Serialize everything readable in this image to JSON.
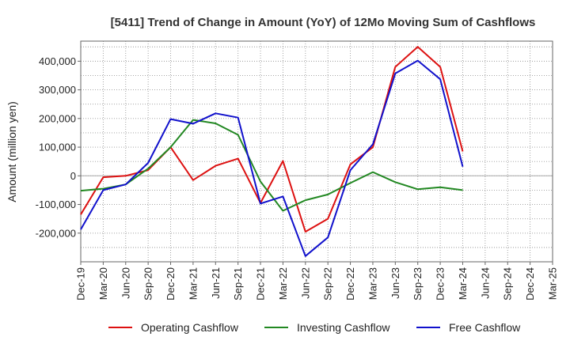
{
  "chart_data": {
    "type": "line",
    "title": "[5411]  Trend of Change in Amount (YoY) of 12Mo Moving Sum of Cashflows",
    "xlabel": "",
    "ylabel": "Amount (million yen)",
    "ylim": [
      -300000,
      470000
    ],
    "yticks": [
      -200000,
      -100000,
      0,
      100000,
      200000,
      300000,
      400000
    ],
    "ytick_labels": [
      "-200,000",
      "-100,000",
      "0",
      "100,000",
      "200,000",
      "300,000",
      "400,000"
    ],
    "categories": [
      "Dec-19",
      "Mar-20",
      "Jun-20",
      "Sep-20",
      "Dec-20",
      "Mar-21",
      "Jun-21",
      "Sep-21",
      "Dec-21",
      "Mar-22",
      "Jun-22",
      "Sep-22",
      "Dec-22",
      "Mar-23",
      "Jun-23",
      "Sep-23",
      "Dec-23",
      "Mar-24",
      "Jun-24",
      "Sep-24",
      "Dec-24",
      "Mar-25"
    ],
    "grid": true,
    "legend_position": "bottom",
    "series": [
      {
        "name": "Operating Cashflow",
        "color": "#dd1111",
        "values": [
          -135000,
          -5000,
          0,
          20000,
          100000,
          -15000,
          35000,
          60000,
          -95000,
          52000,
          -195000,
          -150000,
          40000,
          100000,
          380000,
          450000,
          380000,
          85000,
          null,
          null,
          null,
          null
        ]
      },
      {
        "name": "Investing Cashflow",
        "color": "#228822",
        "values": [
          -52000,
          -45000,
          -30000,
          25000,
          100000,
          195000,
          183000,
          143000,
          -20000,
          -122000,
          -85000,
          -65000,
          -25000,
          13000,
          -22000,
          -47000,
          -40000,
          -50000,
          null,
          null,
          null,
          null
        ]
      },
      {
        "name": "Free Cashflow",
        "color": "#1111cc",
        "values": [
          -187000,
          -50000,
          -30000,
          45000,
          198000,
          182000,
          218000,
          203000,
          -97000,
          -72000,
          -280000,
          -215000,
          20000,
          110000,
          357000,
          402000,
          337000,
          32000,
          null,
          null,
          null,
          null
        ]
      }
    ]
  }
}
